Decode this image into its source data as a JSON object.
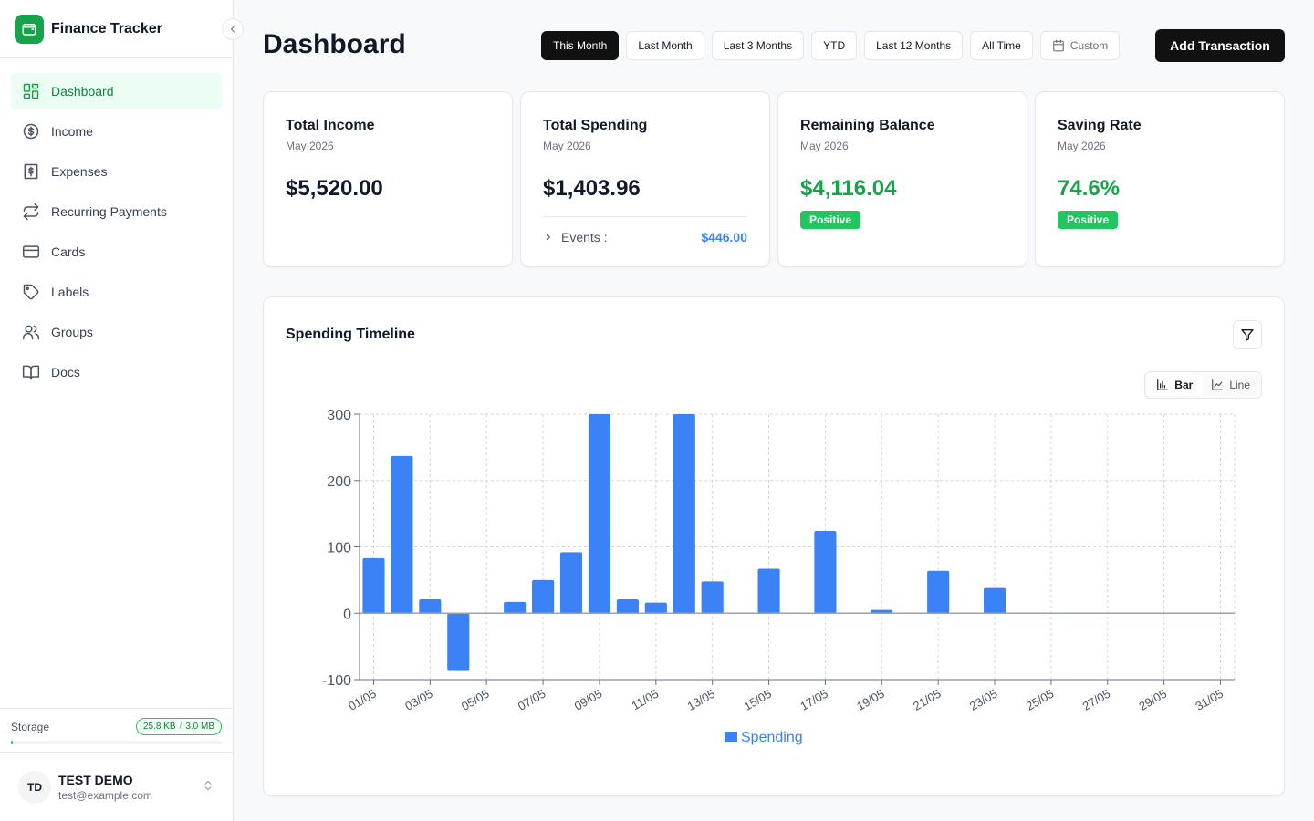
{
  "app": {
    "name": "Finance Tracker"
  },
  "sidebar": {
    "items": [
      {
        "label": "Dashboard",
        "icon": "dashboard-icon",
        "active": true
      },
      {
        "label": "Income",
        "icon": "dollar-circle-icon"
      },
      {
        "label": "Expenses",
        "icon": "receipt-dollar-icon"
      },
      {
        "label": "Recurring Payments",
        "icon": "repeat-icon"
      },
      {
        "label": "Cards",
        "icon": "credit-card-icon"
      },
      {
        "label": "Labels",
        "icon": "tag-icon"
      },
      {
        "label": "Groups",
        "icon": "users-icon"
      },
      {
        "label": "Docs",
        "icon": "book-icon"
      }
    ],
    "storage": {
      "label": "Storage",
      "used": "25.8 KB",
      "separator": "/",
      "total": "3.0 MB",
      "fraction": 0.0084
    },
    "user": {
      "initials": "TD",
      "name": "TEST DEMO",
      "email": "test@example.com"
    }
  },
  "header": {
    "title": "Dashboard",
    "ranges": [
      "This Month",
      "Last Month",
      "Last 3 Months",
      "YTD",
      "Last 12 Months",
      "All Time"
    ],
    "active_range": "This Month",
    "custom_label": "Custom",
    "add_button": "Add Transaction"
  },
  "cards": {
    "income": {
      "title": "Total Income",
      "period": "May 2026",
      "value": "$5,520.00"
    },
    "spending": {
      "title": "Total Spending",
      "period": "May 2026",
      "value": "$1,403.96",
      "events_label": "Events :",
      "events_value": "$446.00"
    },
    "balance": {
      "title": "Remaining Balance",
      "period": "May 2026",
      "value": "$4,116.04",
      "badge": "Positive"
    },
    "saving": {
      "title": "Saving Rate",
      "period": "May 2026",
      "value": "74.6%",
      "badge": "Positive"
    }
  },
  "chart_section": {
    "title": "Spending Timeline",
    "view_bar": "Bar",
    "view_line": "Line",
    "active_view": "Bar"
  },
  "colors": {
    "accent": "#16a34a",
    "bar": "#3b82f6",
    "positive": "#22c55e"
  },
  "chart_data": {
    "type": "bar",
    "categories": [
      "01/05",
      "02/05",
      "03/05",
      "04/05",
      "05/05",
      "06/05",
      "07/05",
      "08/05",
      "09/05",
      "10/05",
      "11/05",
      "12/05",
      "13/05",
      "14/05",
      "15/05",
      "16/05",
      "17/05",
      "18/05",
      "19/05",
      "20/05",
      "21/05",
      "22/05",
      "23/05",
      "24/05",
      "25/05",
      "26/05",
      "27/05",
      "28/05",
      "29/05",
      "30/05",
      "31/05"
    ],
    "tick_labels": [
      "01/05",
      "03/05",
      "05/05",
      "07/05",
      "09/05",
      "11/05",
      "13/05",
      "15/05",
      "17/05",
      "19/05",
      "21/05",
      "23/05",
      "25/05",
      "27/05",
      "29/05",
      "31/05"
    ],
    "series": [
      {
        "name": "Spending",
        "values": [
          83,
          237,
          21,
          -87,
          0,
          17,
          50,
          92,
          300,
          21,
          16,
          300,
          48,
          0,
          67,
          0,
          124,
          0,
          5,
          0,
          64,
          0,
          38,
          0,
          0,
          0,
          0,
          0,
          0,
          0,
          0
        ]
      }
    ],
    "ylim": [
      -100,
      300
    ],
    "yticks": [
      -100,
      0,
      100,
      200,
      300
    ],
    "grid": true,
    "legend": "bottom-center"
  }
}
